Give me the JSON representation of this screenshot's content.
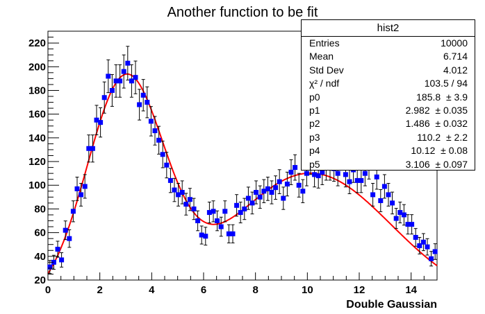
{
  "chart_data": {
    "type": "scatter",
    "title": "Another function to be fit",
    "xlabel": "Double Gaussian",
    "ylabel": "",
    "xlim": [
      0,
      15
    ],
    "ylim": [
      20,
      230
    ],
    "xticks": [
      0,
      2,
      4,
      6,
      8,
      10,
      12,
      14
    ],
    "yticks": [
      20,
      40,
      60,
      80,
      100,
      120,
      140,
      160,
      180,
      200,
      220
    ],
    "grid": false,
    "legend": "none",
    "colors": {
      "points": "#0000ff",
      "fit": "#ff0000",
      "errorbars": "#000000"
    },
    "series": [
      {
        "kind": "points-with-errors",
        "x": [
          0.075,
          0.225,
          0.375,
          0.525,
          0.675,
          0.825,
          0.975,
          1.125,
          1.275,
          1.425,
          1.575,
          1.725,
          1.875,
          2.025,
          2.175,
          2.325,
          2.475,
          2.625,
          2.775,
          2.925,
          3.075,
          3.225,
          3.375,
          3.525,
          3.675,
          3.825,
          3.975,
          4.125,
          4.275,
          4.425,
          4.575,
          4.725,
          4.875,
          5.025,
          5.175,
          5.325,
          5.475,
          5.625,
          5.775,
          5.925,
          6.075,
          6.225,
          6.375,
          6.525,
          6.675,
          6.825,
          6.975,
          7.125,
          7.275,
          7.425,
          7.575,
          7.725,
          7.875,
          8.025,
          8.175,
          8.325,
          8.475,
          8.625,
          8.775,
          8.925,
          9.075,
          9.225,
          9.375,
          9.525,
          9.675,
          9.825,
          9.975,
          10.125,
          10.275,
          10.425,
          10.575,
          10.725,
          10.875,
          11.025,
          11.175,
          11.325,
          11.475,
          11.625,
          11.775,
          11.925,
          12.075,
          12.225,
          12.375,
          12.525,
          12.675,
          12.825,
          12.975,
          13.125,
          13.275,
          13.425,
          13.575,
          13.725,
          13.875,
          14.025,
          14.175,
          14.325,
          14.475,
          14.625,
          14.775,
          14.925
        ],
        "y": [
          31,
          35,
          46,
          37,
          62,
          55,
          78,
          97,
          92,
          99,
          131,
          131,
          155,
          153,
          174,
          192,
          180,
          188,
          188,
          196,
          203,
          188,
          191,
          168,
          176,
          170,
          154,
          146,
          138,
          126,
          117,
          104,
          96,
          92,
          94,
          84,
          88,
          80,
          70,
          58,
          57,
          77,
          78,
          70,
          65,
          78,
          59,
          59,
          83,
          77,
          80,
          89,
          85,
          94,
          90,
          95,
          97,
          94,
          98,
          103,
          89,
          101,
          111,
          115,
          100,
          95,
          110,
          120,
          109,
          108,
          111,
          115,
          115,
          114,
          110,
          124,
          109,
          103,
          113,
          104,
          104,
          110,
          116,
          92,
          107,
          87,
          99,
          92,
          85,
          72,
          77,
          75,
          67,
          67,
          56,
          49,
          52,
          48,
          38,
          44
        ]
      },
      {
        "name": "fit",
        "kind": "curve",
        "params": {
          "p0": 185.8,
          "p1": 2.982,
          "p2": 1.486,
          "p3": 110.2,
          "p4": 10.12,
          "p5": 3.106
        }
      }
    ]
  },
  "stats_box": {
    "title": "hist2",
    "rows": [
      {
        "key": "Entries",
        "value": "10000"
      },
      {
        "key": "Mean",
        "value": "6.714"
      },
      {
        "key": "Std Dev",
        "value": "4.012"
      },
      {
        "key": "χ² / ndf",
        "value": "103.5 / 94"
      },
      {
        "key": "p0",
        "value": "185.8  ± 3.9"
      },
      {
        "key": "p1",
        "value": "2.982  ± 0.035"
      },
      {
        "key": "p2",
        "value": "1.486  ± 0.032"
      },
      {
        "key": "p3",
        "value": "110.2  ± 2.2"
      },
      {
        "key": "p4",
        "value": "10.12  ± 0.08"
      },
      {
        "key": "p5",
        "value": "3.106  ± 0.097"
      }
    ]
  }
}
